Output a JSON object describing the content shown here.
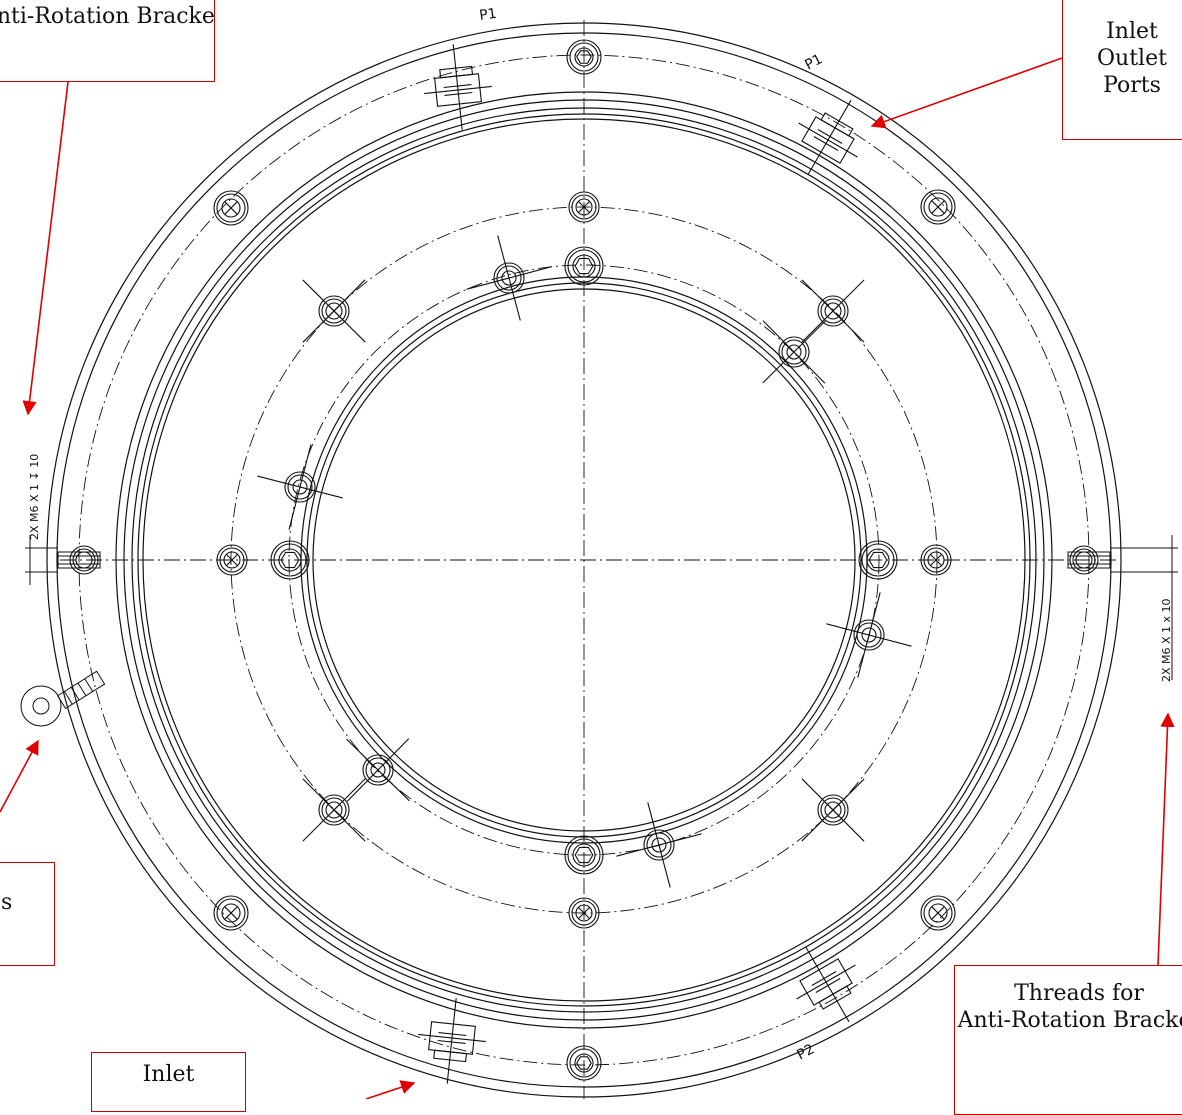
{
  "callouts": {
    "bracket": {
      "lines": [
        "Anti-Rotation Bracket"
      ]
    },
    "ports_top": {
      "lines": [
        "Inlet",
        "Outlet",
        "Ports"
      ]
    },
    "left_lower": {
      "lines": [
        "",
        "s"
      ]
    },
    "threads": {
      "lines": [
        "Threads for",
        "Anti-Rotation Bracket"
      ]
    },
    "inlet_bottom": {
      "lines": [
        "Inlet"
      ]
    }
  },
  "port_labels": {
    "p1_left": "P1",
    "p1_right": "P1",
    "p2": "P2"
  },
  "thread_specs": {
    "left": "2X M6 X 1 ↧ 10",
    "right": "2X M6 X 1 x  10"
  },
  "colors": {
    "line": "#111111",
    "arrow": "#e00000",
    "callout_border": "#c00000"
  }
}
